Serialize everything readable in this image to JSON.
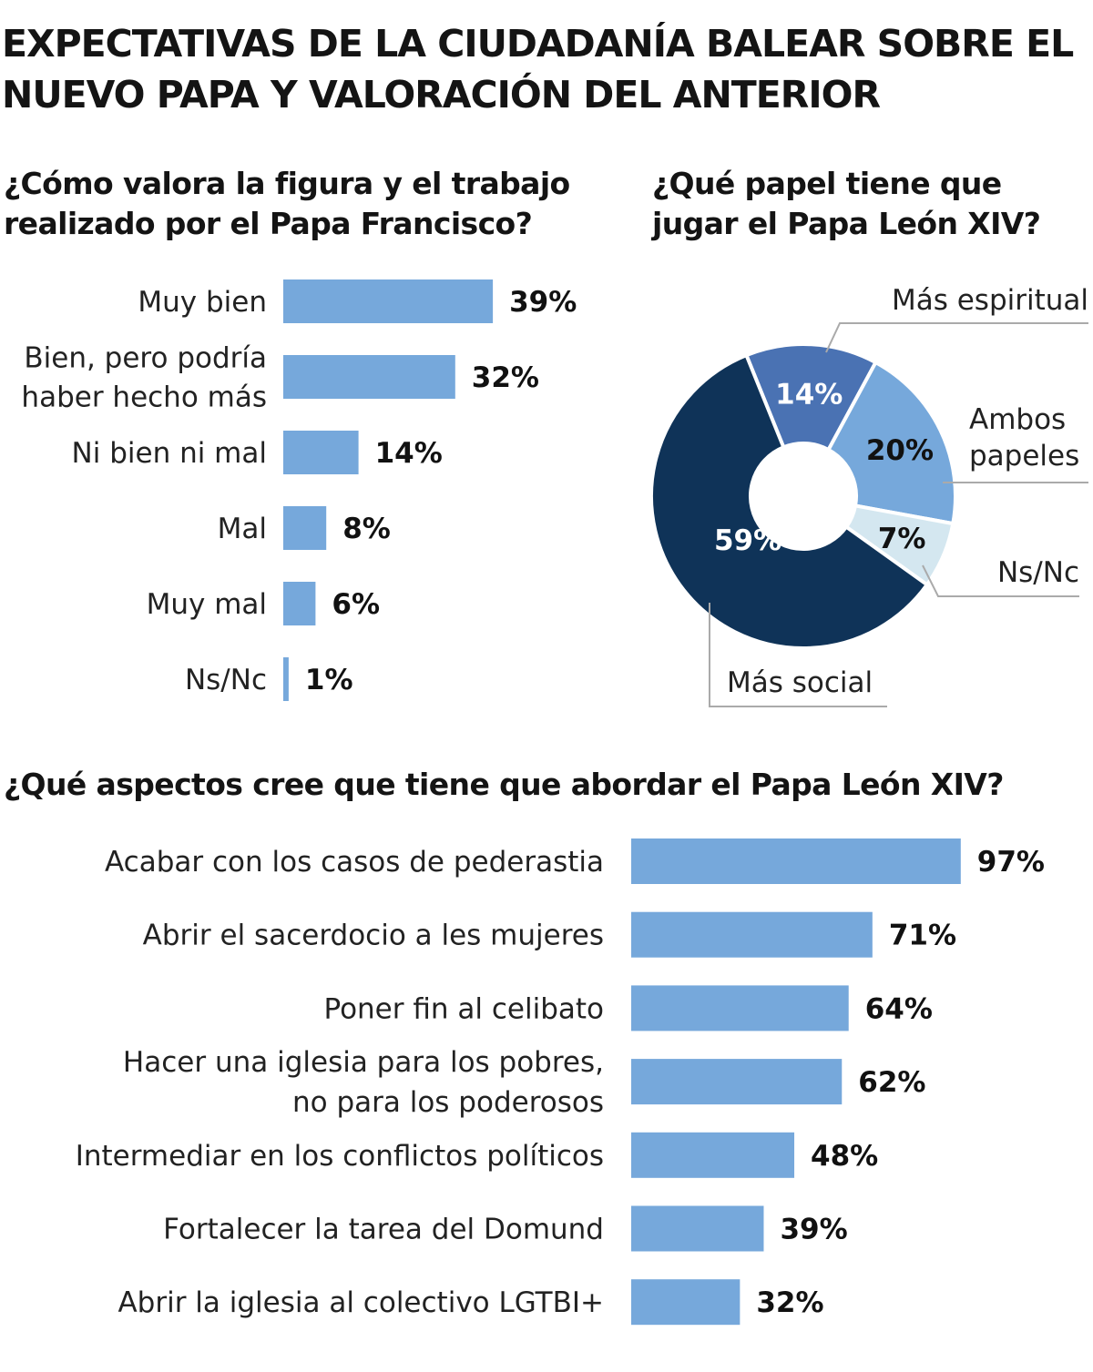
{
  "title": "EXPECTATIVAS DE LA CIUDADANÍA BALEAR SOBRE EL NUEVO PAPA Y VALORACIÓN DEL ANTERIOR",
  "colors": {
    "bar": "#76a8db",
    "mas_social": "#0f3358",
    "mas_espiritual": "#4a72b3",
    "ambos": "#76a8db",
    "nsnc": "#d4e7f0"
  },
  "chart_data": [
    {
      "type": "bar",
      "orientation": "horizontal",
      "title": "¿Cómo valora la figura y el trabajo realizado por el Papa Francisco?",
      "categories": [
        [
          "Muy bien"
        ],
        [
          "Bien, pero podría",
          "haber hecho más"
        ],
        [
          "Ni bien ni mal"
        ],
        [
          "Mal"
        ],
        [
          "Muy mal"
        ],
        [
          "Ns/Nc"
        ]
      ],
      "values": [
        39,
        32,
        14,
        8,
        6,
        1
      ],
      "value_labels": [
        "39%",
        "32%",
        "14%",
        "8%",
        "6%",
        "1%"
      ],
      "unit": "%"
    },
    {
      "type": "pie",
      "style": "donut",
      "title": "¿Qué papel tiene que jugar el Papa León XIV?",
      "slices": [
        {
          "label": "Más espiritual",
          "value": 14,
          "value_label": "14%",
          "color": "#4a72b3"
        },
        {
          "label": "Ambos papeles",
          "label_lines": [
            "Ambos",
            "papeles"
          ],
          "value": 20,
          "value_label": "20%",
          "color": "#76a8db"
        },
        {
          "label": "Ns/Nc",
          "value": 7,
          "value_label": "7%",
          "color": "#d4e7f0"
        },
        {
          "label": "Más social",
          "value": 59,
          "value_label": "59%",
          "color": "#0f3358"
        }
      ]
    },
    {
      "type": "bar",
      "orientation": "horizontal",
      "title": "¿Qué aspectos cree que tiene que abordar el Papa León XIV?",
      "categories": [
        [
          "Acabar con los casos de pederastia"
        ],
        [
          "Abrir el sacerdocio a les mujeres"
        ],
        [
          "Poner fin al celibato"
        ],
        [
          "Hacer una iglesia para los pobres,",
          "no para los poderosos"
        ],
        [
          "Intermediar en los conflictos políticos"
        ],
        [
          "Fortalecer la tarea del Domund"
        ],
        [
          "Abrir la iglesia al colectivo LGTBI+"
        ]
      ],
      "values": [
        97,
        71,
        64,
        62,
        48,
        39,
        32
      ],
      "value_labels": [
        "97%",
        "71%",
        "64%",
        "62%",
        "48%",
        "39%",
        "32%"
      ],
      "unit": "%"
    }
  ]
}
